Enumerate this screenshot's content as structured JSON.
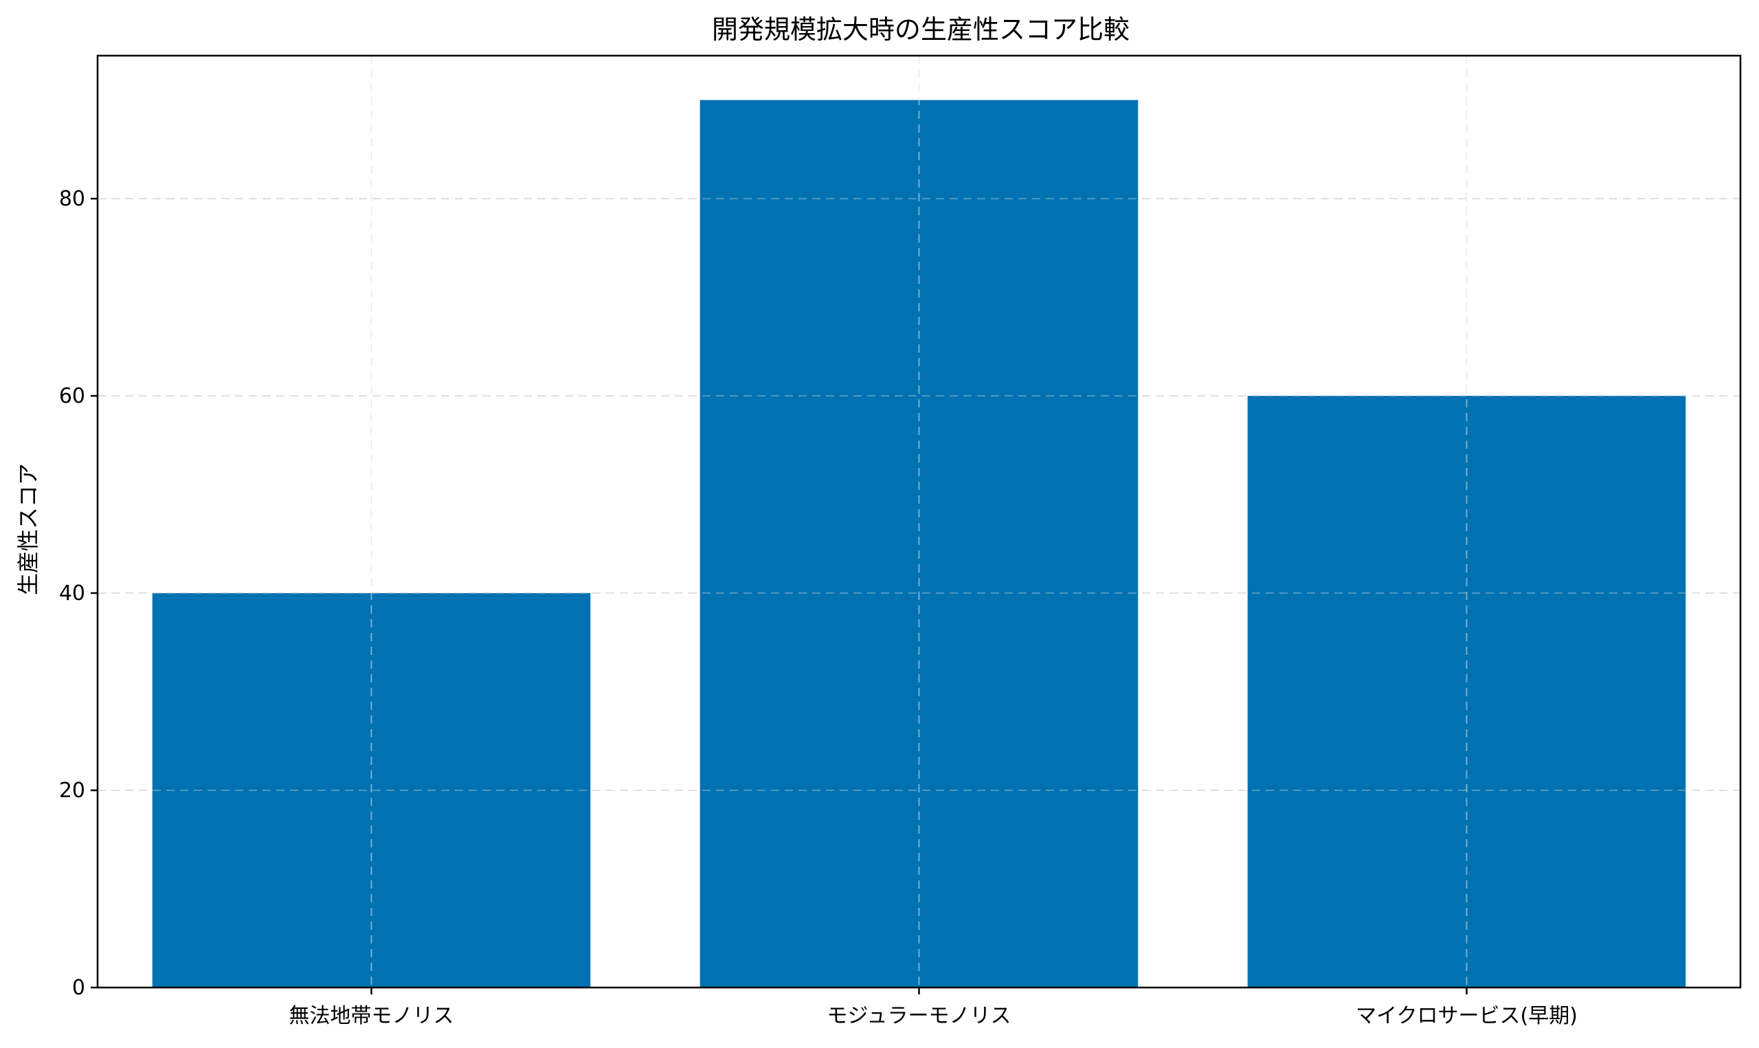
{
  "chart_data": {
    "type": "bar",
    "title": "開発規模拡大時の生産性スコア比較",
    "xlabel": "",
    "ylabel": "生産性スコア",
    "categories": [
      "無法地帯モノリス",
      "モジュラーモノリス",
      "マイクロサービス(早期)"
    ],
    "values": [
      40,
      90,
      60
    ],
    "ylim": [
      0,
      94.5
    ],
    "yticks": [
      0,
      20,
      40,
      60,
      80
    ],
    "grid": true,
    "bar_color": "#0072b2",
    "grid_color": "#e0e0e0"
  }
}
